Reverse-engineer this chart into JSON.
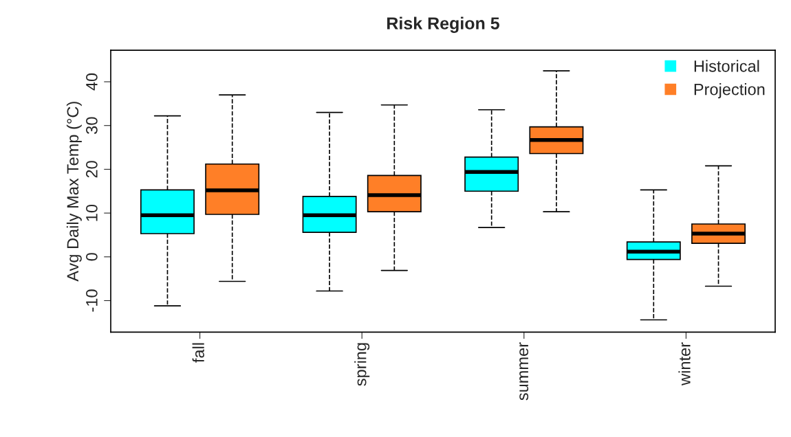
{
  "chart_data": {
    "type": "box",
    "title": "Risk Region 5",
    "ylabel": "Avg Daily Max Temp (°C)",
    "categories": [
      "fall",
      "spring",
      "summer",
      "winter"
    ],
    "ylim": [
      -17.2,
      47.2
    ],
    "yticks": [
      -10,
      0,
      10,
      20,
      30,
      40
    ],
    "grid": false,
    "legend": "top right",
    "line_style": "dashed",
    "series": [
      {
        "name": "Historical",
        "color": "#00ffff",
        "boxes": [
          {
            "low": -11.2,
            "q1": 5.3,
            "median": 9.5,
            "q3": 15.3,
            "high": 32.2
          },
          {
            "low": -7.8,
            "q1": 5.6,
            "median": 9.5,
            "q3": 13.8,
            "high": 33.0
          },
          {
            "low": 6.7,
            "q1": 15.0,
            "median": 19.4,
            "q3": 22.8,
            "high": 33.6
          },
          {
            "low": -14.4,
            "q1": -0.6,
            "median": 1.2,
            "q3": 3.4,
            "high": 15.3
          }
        ]
      },
      {
        "name": "Projection",
        "color": "#ff7f27",
        "boxes": [
          {
            "low": -5.6,
            "q1": 9.7,
            "median": 15.2,
            "q3": 21.2,
            "high": 37.0
          },
          {
            "low": -3.1,
            "q1": 10.3,
            "median": 14.1,
            "q3": 18.6,
            "high": 34.7
          },
          {
            "low": 10.3,
            "q1": 23.6,
            "median": 26.7,
            "q3": 29.7,
            "high": 42.5
          },
          {
            "low": -6.7,
            "q1": 3.1,
            "median": 5.3,
            "q3": 7.5,
            "high": 20.8
          }
        ]
      }
    ]
  }
}
